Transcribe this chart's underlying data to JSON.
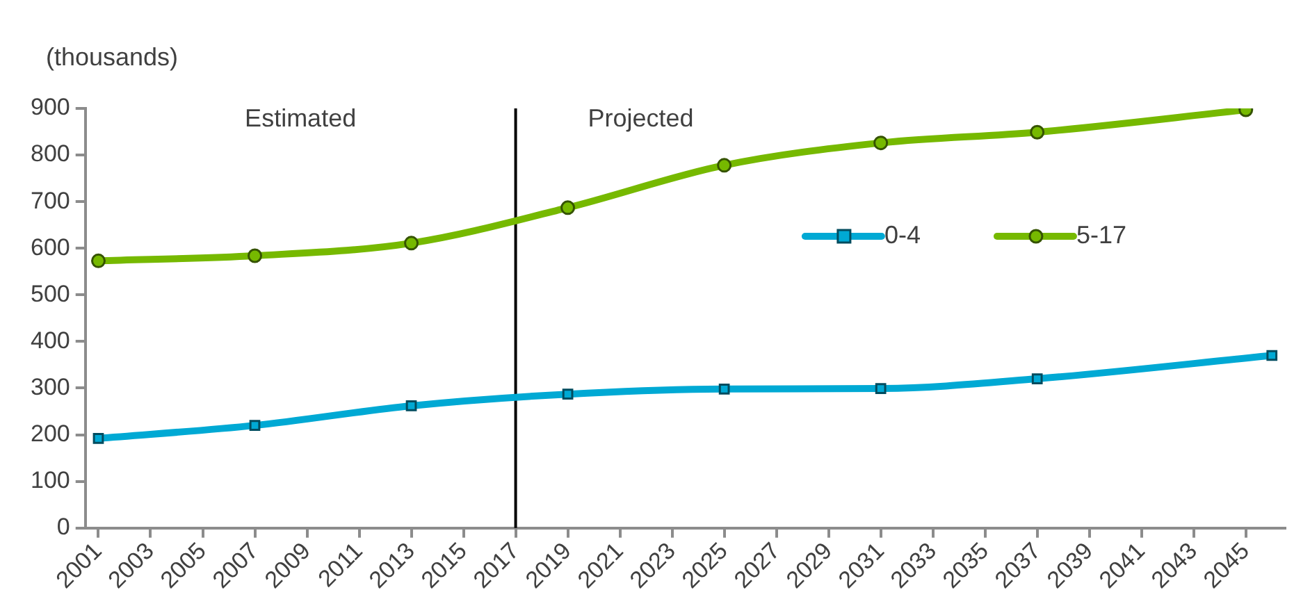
{
  "chart_data": {
    "type": "line",
    "ylabel": "(thousands)",
    "xlim": [
      2000.5,
      2046.5
    ],
    "xticks": [
      2001,
      2003,
      2005,
      2007,
      2009,
      2011,
      2013,
      2015,
      2017,
      2019,
      2021,
      2023,
      2025,
      2027,
      2029,
      2031,
      2033,
      2035,
      2037,
      2039,
      2041,
      2043,
      2045
    ],
    "series": [
      {
        "name": "0-4",
        "color": "#00a9d4",
        "marker": "square",
        "x": [
          2001,
          2007,
          2013,
          2019,
          2025,
          2031,
          2037,
          2046
        ],
        "values": [
          192,
          220,
          262,
          287,
          298,
          299,
          320,
          370
        ]
      },
      {
        "name": "5-17",
        "color": "#76b900",
        "marker": "circle",
        "x": [
          2001,
          2007,
          2013,
          2019,
          2025,
          2031,
          2037,
          2045
        ],
        "values": [
          573,
          584,
          611,
          687,
          778,
          826,
          849,
          897
        ]
      }
    ],
    "ylim": [
      0,
      900
    ],
    "yticks": [
      0,
      100,
      200,
      300,
      400,
      500,
      600,
      700,
      800,
      900
    ],
    "grid": false,
    "legend": "right",
    "ref_lines": [
      {
        "axis": "x",
        "value": 2017,
        "color": "#000000"
      }
    ],
    "annotations": [
      "Estimated",
      "Projected"
    ]
  }
}
